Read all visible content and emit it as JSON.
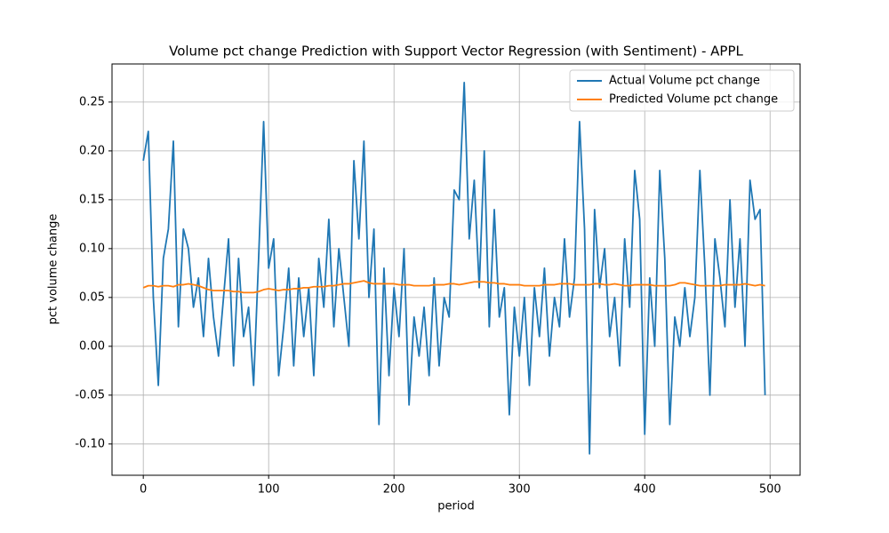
{
  "chart_data": {
    "type": "line",
    "title": "Volume pct change Prediction with Support Vector Regression (with Sentiment) - APPL",
    "x_label": "period",
    "y_label": "pct volume change",
    "x": [
      0,
      4,
      8,
      12,
      16,
      20,
      24,
      28,
      32,
      36,
      40,
      44,
      48,
      52,
      56,
      60,
      64,
      68,
      72,
      76,
      80,
      84,
      88,
      92,
      96,
      100,
      104,
      108,
      112,
      116,
      120,
      124,
      128,
      132,
      136,
      140,
      144,
      148,
      152,
      156,
      160,
      164,
      168,
      172,
      176,
      180,
      184,
      188,
      192,
      196,
      200,
      204,
      208,
      212,
      216,
      220,
      224,
      228,
      232,
      236,
      240,
      244,
      248,
      252,
      256,
      260,
      264,
      268,
      272,
      276,
      280,
      284,
      288,
      292,
      296,
      300,
      304,
      308,
      312,
      316,
      320,
      324,
      328,
      332,
      336,
      340,
      344,
      348,
      352,
      356,
      360,
      364,
      368,
      372,
      376,
      380,
      384,
      388,
      392,
      396,
      400,
      404,
      408,
      412,
      416,
      420,
      424,
      428,
      432,
      436,
      440,
      444,
      448,
      452,
      456,
      460,
      464,
      468,
      472,
      476,
      480,
      484,
      488,
      492,
      496
    ],
    "series": [
      {
        "name": "Actual Volume pct change",
        "color": "#1f77b4",
        "values": [
          0.19,
          0.22,
          0.05,
          -0.04,
          0.09,
          0.12,
          0.21,
          0.02,
          0.12,
          0.1,
          0.04,
          0.07,
          0.01,
          0.09,
          0.03,
          -0.01,
          0.05,
          0.11,
          -0.02,
          0.09,
          0.01,
          0.04,
          -0.04,
          0.09,
          0.23,
          0.08,
          0.11,
          -0.03,
          0.02,
          0.08,
          -0.02,
          0.07,
          0.01,
          0.06,
          -0.03,
          0.09,
          0.04,
          0.13,
          0.02,
          0.1,
          0.05,
          0.0,
          0.19,
          0.11,
          0.21,
          0.05,
          0.12,
          -0.08,
          0.08,
          -0.03,
          0.06,
          0.01,
          0.1,
          -0.06,
          0.03,
          -0.01,
          0.04,
          -0.03,
          0.07,
          -0.02,
          0.05,
          0.03,
          0.16,
          0.15,
          0.27,
          0.11,
          0.17,
          0.06,
          0.2,
          0.02,
          0.14,
          0.03,
          0.06,
          -0.07,
          0.04,
          -0.01,
          0.05,
          -0.04,
          0.06,
          0.01,
          0.08,
          -0.01,
          0.05,
          0.02,
          0.11,
          0.03,
          0.07,
          0.23,
          0.12,
          -0.11,
          0.14,
          0.06,
          0.1,
          0.01,
          0.05,
          -0.02,
          0.11,
          0.04,
          0.18,
          0.13,
          -0.09,
          0.07,
          0.0,
          0.18,
          0.09,
          -0.08,
          0.03,
          0.0,
          0.06,
          0.01,
          0.05,
          0.18,
          0.08,
          -0.05,
          0.11,
          0.07,
          0.02,
          0.15,
          0.04,
          0.11,
          0.0,
          0.17,
          0.13,
          0.14,
          -0.05
        ]
      },
      {
        "name": "Predicted Volume pct change",
        "color": "#ff7f0e",
        "values": [
          0.06,
          0.062,
          0.062,
          0.061,
          0.062,
          0.062,
          0.061,
          0.063,
          0.063,
          0.064,
          0.063,
          0.062,
          0.06,
          0.058,
          0.057,
          0.057,
          0.057,
          0.057,
          0.056,
          0.056,
          0.055,
          0.055,
          0.055,
          0.056,
          0.058,
          0.059,
          0.058,
          0.057,
          0.058,
          0.058,
          0.059,
          0.059,
          0.06,
          0.06,
          0.061,
          0.061,
          0.061,
          0.062,
          0.062,
          0.063,
          0.064,
          0.064,
          0.065,
          0.066,
          0.067,
          0.065,
          0.064,
          0.064,
          0.064,
          0.064,
          0.064,
          0.063,
          0.063,
          0.063,
          0.062,
          0.062,
          0.062,
          0.062,
          0.063,
          0.063,
          0.063,
          0.064,
          0.064,
          0.063,
          0.064,
          0.065,
          0.066,
          0.066,
          0.066,
          0.065,
          0.065,
          0.064,
          0.064,
          0.063,
          0.063,
          0.063,
          0.062,
          0.062,
          0.062,
          0.062,
          0.063,
          0.063,
          0.063,
          0.064,
          0.064,
          0.064,
          0.063,
          0.063,
          0.063,
          0.063,
          0.064,
          0.064,
          0.063,
          0.063,
          0.064,
          0.063,
          0.062,
          0.062,
          0.063,
          0.063,
          0.063,
          0.063,
          0.062,
          0.062,
          0.062,
          0.062,
          0.063,
          0.065,
          0.065,
          0.064,
          0.063,
          0.062,
          0.062,
          0.062,
          0.062,
          0.062,
          0.063,
          0.063,
          0.063,
          0.063,
          0.064,
          0.063,
          0.062,
          0.063,
          0.062
        ]
      }
    ],
    "xlim": [
      -24.95,
      523.95
    ],
    "xticks": [
      0,
      100,
      200,
      300,
      400,
      500
    ],
    "ylim": [
      -0.132,
      0.289
    ],
    "yticks": [
      {
        "value": -0.1,
        "label": "-0.10"
      },
      -0.05,
      {
        "value": 0,
        "label": "0.00"
      },
      0.05,
      {
        "value": 0.1,
        "label": "0.10"
      },
      0.15,
      {
        "value": 0.2,
        "label": "0.20"
      },
      0.25
    ],
    "grid": true,
    "legend": "upper right"
  }
}
